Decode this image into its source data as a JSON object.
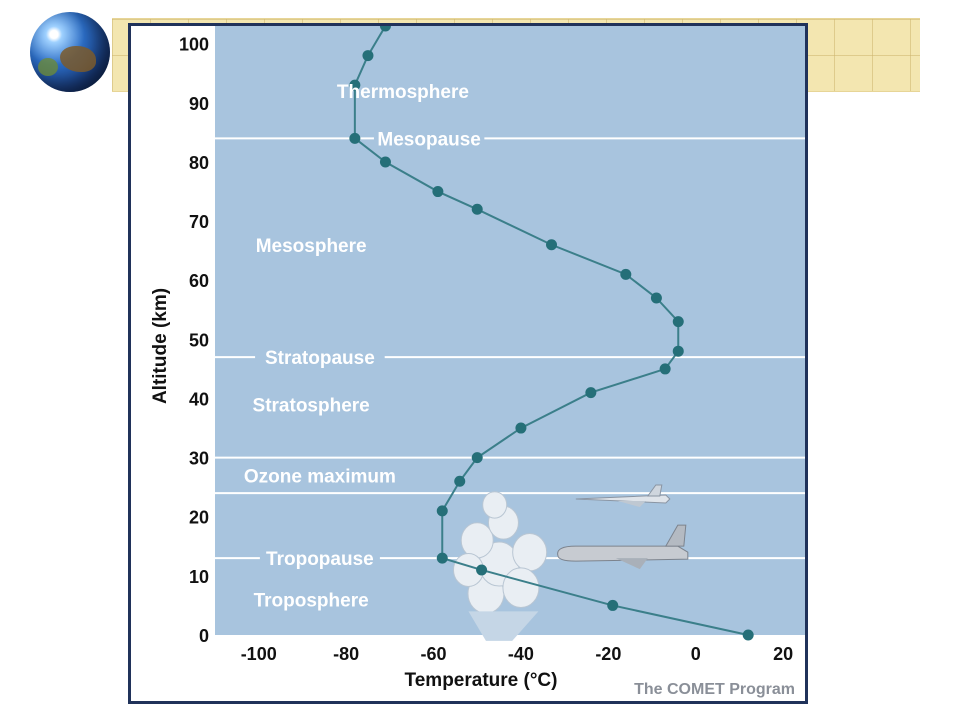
{
  "chart_data": {
    "type": "line",
    "xlabel": "Temperature (°C)",
    "ylabel": "Altitude (km)",
    "xlim": [
      -110,
      25
    ],
    "ylim": [
      0,
      103
    ],
    "x_ticks": [
      -100,
      -80,
      -60,
      -40,
      -20,
      0,
      20
    ],
    "y_ticks": [
      0,
      10,
      20,
      30,
      40,
      50,
      60,
      70,
      80,
      90,
      100
    ],
    "x_tick_labels": [
      "-100",
      "-80",
      "-60",
      "-40",
      "-20",
      "0",
      "20"
    ],
    "y_tick_labels": [
      "0",
      "10",
      "20",
      "30",
      "40",
      "50",
      "60",
      "70",
      "80",
      "90",
      "100"
    ],
    "series": [
      {
        "points": [
          {
            "x": 12,
            "y": 0
          },
          {
            "x": -19,
            "y": 5
          },
          {
            "x": -49,
            "y": 11
          },
          {
            "x": -58,
            "y": 13
          },
          {
            "x": -58,
            "y": 21
          },
          {
            "x": -54,
            "y": 26
          },
          {
            "x": -50,
            "y": 30
          },
          {
            "x": -40,
            "y": 35
          },
          {
            "x": -24,
            "y": 41
          },
          {
            "x": -7,
            "y": 45
          },
          {
            "x": -4,
            "y": 48
          },
          {
            "x": -4,
            "y": 53
          },
          {
            "x": -9,
            "y": 57
          },
          {
            "x": -16,
            "y": 61
          },
          {
            "x": -33,
            "y": 66
          },
          {
            "x": -50,
            "y": 72
          },
          {
            "x": -59,
            "y": 75
          },
          {
            "x": -71,
            "y": 80
          },
          {
            "x": -78,
            "y": 84
          },
          {
            "x": -78,
            "y": 93
          },
          {
            "x": -75,
            "y": 98
          },
          {
            "x": -71,
            "y": 103
          }
        ]
      }
    ],
    "boundaries": [
      {
        "label": "Mesopause",
        "y": 84
      },
      {
        "label": "Stratopause",
        "y": 47
      },
      {
        "label": "",
        "y": 30
      },
      {
        "label": "",
        "y": 24
      },
      {
        "label": "Tropopause",
        "y": 13
      }
    ],
    "region_labels": [
      {
        "label": "Thermosphere",
        "x": -67,
        "y": 92
      },
      {
        "label": "Mesosphere",
        "x": -88,
        "y": 66
      },
      {
        "label": "Stratosphere",
        "x": -88,
        "y": 39
      },
      {
        "label": "Ozone maximum",
        "x": -86,
        "y": 27
      },
      {
        "label": "Troposphere",
        "x": -88,
        "y": 6
      }
    ],
    "credit": "The COMET Program",
    "grid": false,
    "colors": {
      "plot_background": "#a8c4de",
      "line": "#3b7f8a",
      "marker": "#256f78",
      "boundary_line": "#ffffff",
      "label_text": "#ffffff",
      "axis_text": "#111111",
      "frame": "#20325a",
      "banner": "#f3e6b0"
    },
    "decorations": [
      "globe-icon",
      "cloud-icon",
      "jet-fighter-icon",
      "airliner-icon"
    ]
  }
}
